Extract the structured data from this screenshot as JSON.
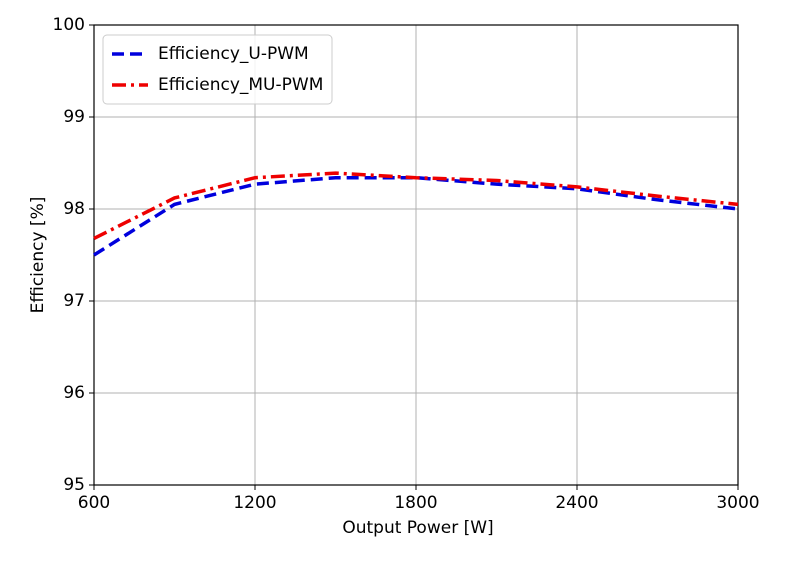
{
  "chart_data": {
    "type": "line",
    "xlabel": "Output Power [W]",
    "ylabel": "Efficiency [%]",
    "x": [
      600,
      900,
      1200,
      1500,
      1800,
      2100,
      2400,
      2700,
      3000
    ],
    "series": [
      {
        "name": "Efficiency_U-PWM",
        "color": "#0000dd",
        "linestyle": "dashed",
        "values": [
          97.5,
          98.05,
          98.27,
          98.34,
          98.34,
          98.27,
          98.22,
          98.1,
          98.0
        ]
      },
      {
        "name": "Efficiency_MU-PWM",
        "color": "#ee0000",
        "linestyle": "dashdot",
        "values": [
          97.68,
          98.12,
          98.34,
          98.39,
          98.34,
          98.31,
          98.24,
          98.14,
          98.05
        ]
      }
    ],
    "xlim": [
      600,
      3000
    ],
    "ylim": [
      95,
      100
    ],
    "xticks": [
      600,
      1200,
      1800,
      2400,
      3000
    ],
    "yticks": [
      95,
      96,
      97,
      98,
      99,
      100
    ],
    "grid": true,
    "legend": "upper left"
  }
}
